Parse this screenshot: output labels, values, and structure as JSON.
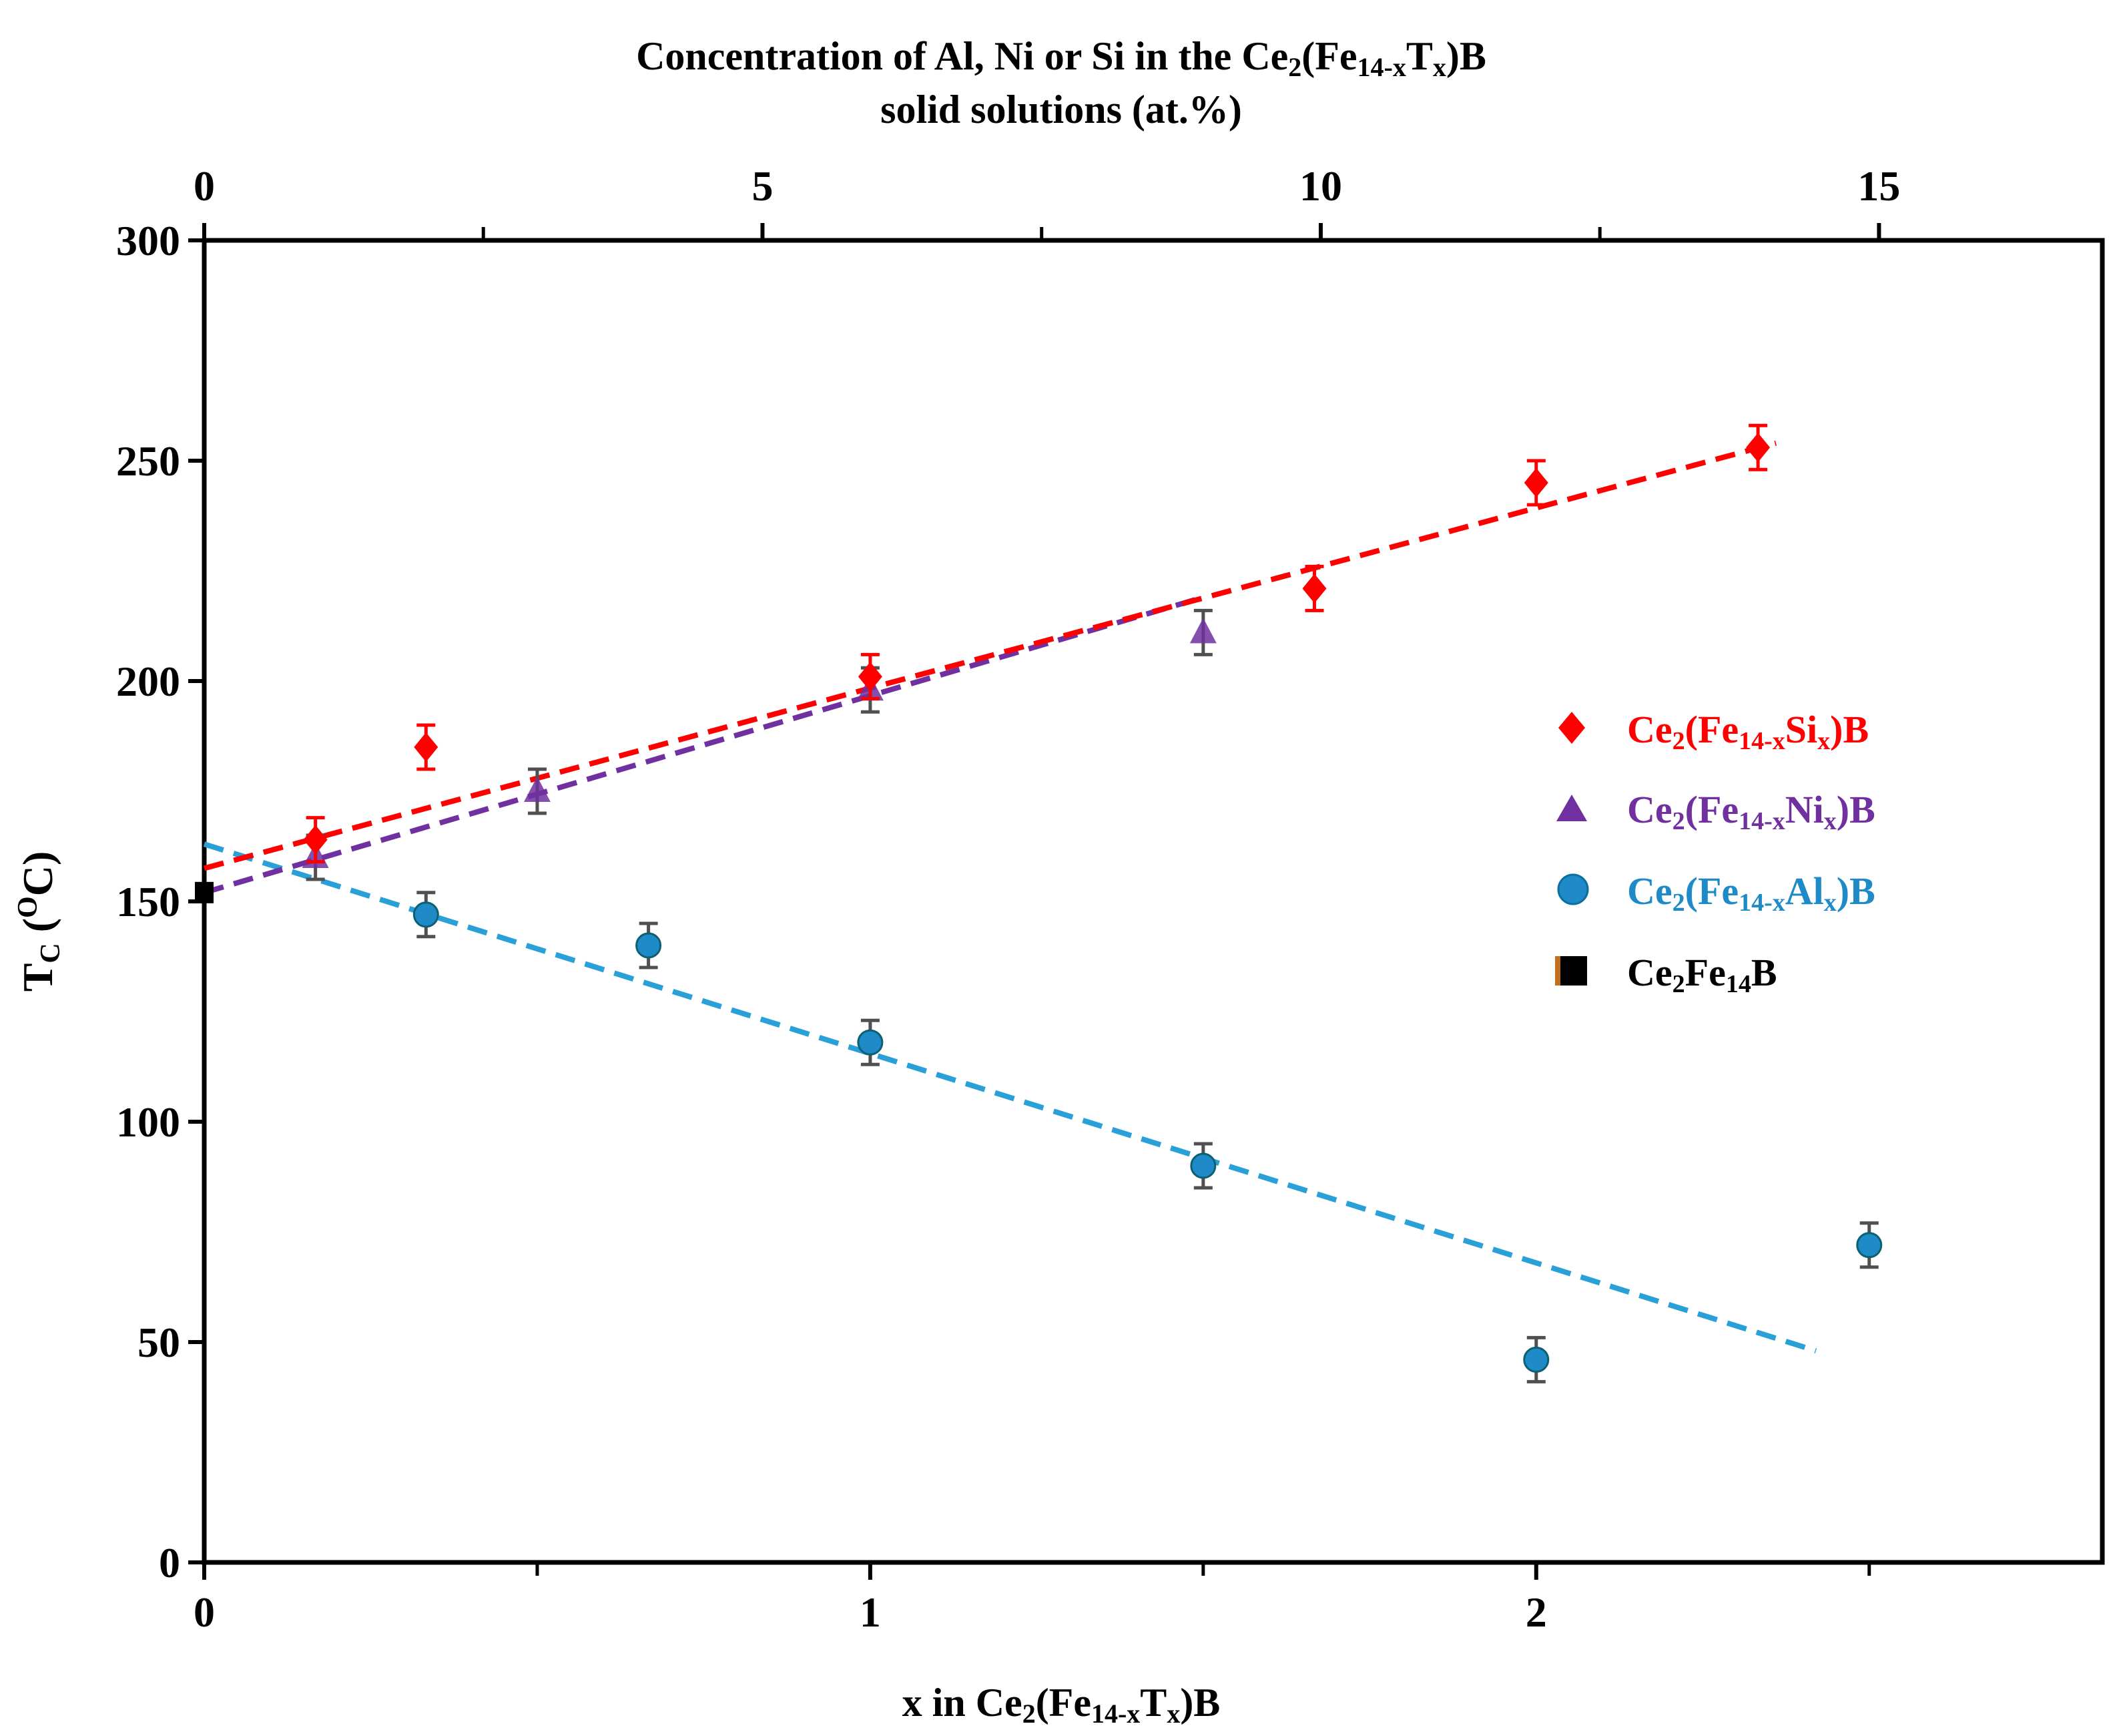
{
  "colors": {
    "si": "#ff0000",
    "ni": "#7030a0",
    "al": "#1f8ac8",
    "al_line": "#29a0d8",
    "base": "#000000",
    "error_bar_dark": "#505050"
  },
  "chart_data": {
    "type": "scatter",
    "title": "",
    "xlabel": {
      "prefix": "x in Ce",
      "s1": "2",
      "mid": "(Fe",
      "s2": "14-x",
      "mid2": "T",
      "s3": "x",
      "suffix": ")B"
    },
    "ylabel": {
      "main": "T",
      "sub": "C",
      "open": " (",
      "sup": "O",
      "close": "C)"
    },
    "top_xlabel": {
      "line1_prefix": "Concentration of Al, Ni or Si in the Ce",
      "line1_s1": "2",
      "line1_mid": "(Fe",
      "line1_s2": "14-x",
      "line1_mid2": "T",
      "line1_s3": "x",
      "line1_suffix": ")B",
      "line2": "solid solutions (at.%)"
    },
    "xlim": [
      0,
      2.85
    ],
    "ylim": [
      0,
      300
    ],
    "top_xlim": [
      0,
      17
    ],
    "x_tick_labels": [
      {
        "v": 0,
        "t": "0"
      },
      {
        "v": 1,
        "t": "1"
      },
      {
        "v": 2,
        "t": "2"
      }
    ],
    "x_minor": [
      0.5,
      1.5,
      2.5
    ],
    "top_tick_labels": [
      {
        "v": 0,
        "t": "0"
      },
      {
        "v": 5,
        "t": "5"
      },
      {
        "v": 10,
        "t": "10"
      },
      {
        "v": 15,
        "t": "15"
      }
    ],
    "top_minor": [
      2.5,
      7.5,
      12.5
    ],
    "y_ticks": [
      {
        "v": 0,
        "t": "0"
      },
      {
        "v": 50,
        "t": "50"
      },
      {
        "v": 100,
        "t": "100"
      },
      {
        "v": 150,
        "t": "150"
      },
      {
        "v": 200,
        "t": "200"
      },
      {
        "v": 250,
        "t": "250"
      },
      {
        "v": 300,
        "t": "300"
      }
    ],
    "series": [
      {
        "key": "si",
        "marker": "diamond",
        "legend": {
          "a": "Ce",
          "b": "2",
          "c": "(Fe",
          "d": "14-x",
          "e": "Si",
          "f": "x",
          "g": ")B"
        },
        "points": [
          [
            0.167,
            164
          ],
          [
            0.333,
            185
          ],
          [
            1.0,
            201
          ],
          [
            1.667,
            221
          ],
          [
            2.0,
            245
          ],
          [
            2.333,
            253
          ]
        ],
        "err": 5,
        "fit": {
          "x0": 0.0,
          "y0": 157.5,
          "x1": 2.36,
          "y1": 254
        }
      },
      {
        "key": "ni",
        "marker": "triangle",
        "legend": {
          "a": "Ce",
          "b": "2",
          "c": "(Fe",
          "d": "14-x",
          "e": "Ni",
          "f": "x",
          "g": ")B"
        },
        "points": [
          [
            0.167,
            160
          ],
          [
            0.5,
            175
          ],
          [
            1.0,
            198
          ],
          [
            1.5,
            211
          ]
        ],
        "err": 5,
        "fit": {
          "x0": 0.0,
          "y0": 152,
          "x1": 1.5,
          "y1": 219
        }
      },
      {
        "key": "al",
        "marker": "circle",
        "legend": {
          "a": "Ce",
          "b": "2",
          "c": "(Fe",
          "d": "14-x",
          "e": "Al",
          "f": "x",
          "g": ")B"
        },
        "points": [
          [
            0.333,
            147
          ],
          [
            0.667,
            140
          ],
          [
            1.0,
            118
          ],
          [
            1.5,
            90
          ],
          [
            2.0,
            46
          ],
          [
            2.5,
            72
          ]
        ],
        "err": 5,
        "fit": {
          "x0": 0.0,
          "y0": 163,
          "x1": 2.42,
          "y1": 48
        }
      },
      {
        "key": "base",
        "marker": "square",
        "legend": {
          "a": "Ce",
          "b": "2",
          "c": "Fe",
          "d": "14",
          "e": "B",
          "f": "",
          "g": ""
        },
        "points": [
          [
            0.0,
            152
          ]
        ],
        "err": 0
      }
    ]
  }
}
